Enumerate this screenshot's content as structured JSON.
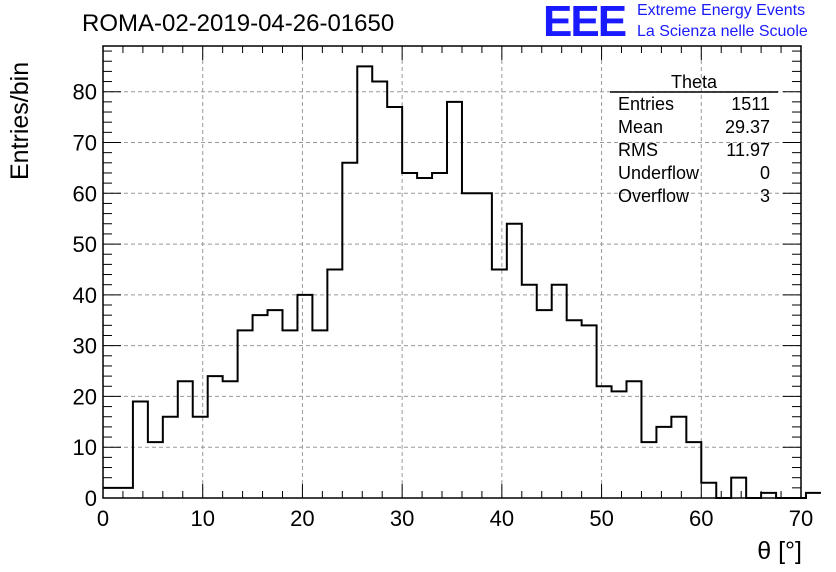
{
  "title": "ROMA-02-2019-04-26-01650",
  "logo": {
    "mark": "EEE",
    "line1": "Extreme Energy Events",
    "line2": "La Scienza nelle Scuole",
    "color": "#1a1aff"
  },
  "chart_data": {
    "type": "bar",
    "title": "ROMA-02-2019-04-26-01650",
    "xlabel": "θ [°]",
    "ylabel": "Entries/bin",
    "xlim": [
      0,
      70
    ],
    "ylim": [
      0,
      89
    ],
    "grid": true,
    "bin_width": 1.5,
    "bin_edges_start": 0,
    "values": [
      2,
      2,
      19,
      11,
      16,
      23,
      16,
      24,
      23,
      33,
      36,
      37,
      33,
      40,
      33,
      45,
      66,
      85,
      82,
      77,
      64,
      63,
      64,
      78,
      60,
      60,
      45,
      54,
      42,
      37,
      42,
      35,
      34,
      22,
      21,
      23,
      11,
      14,
      16,
      11,
      3,
      0,
      4,
      0,
      1,
      0,
      0,
      1
    ],
    "x_ticks": [
      0,
      10,
      20,
      30,
      40,
      50,
      60,
      70
    ],
    "y_ticks": [
      0,
      10,
      20,
      30,
      40,
      50,
      60,
      70,
      80
    ],
    "stats": {
      "name": "Theta",
      "rows": [
        {
          "label": "Entries",
          "value": "1511"
        },
        {
          "label": "Mean",
          "value": "29.37"
        },
        {
          "label": "RMS",
          "value": "11.97"
        },
        {
          "label": "Underflow",
          "value": "0"
        },
        {
          "label": "Overflow",
          "value": "3"
        }
      ]
    }
  }
}
